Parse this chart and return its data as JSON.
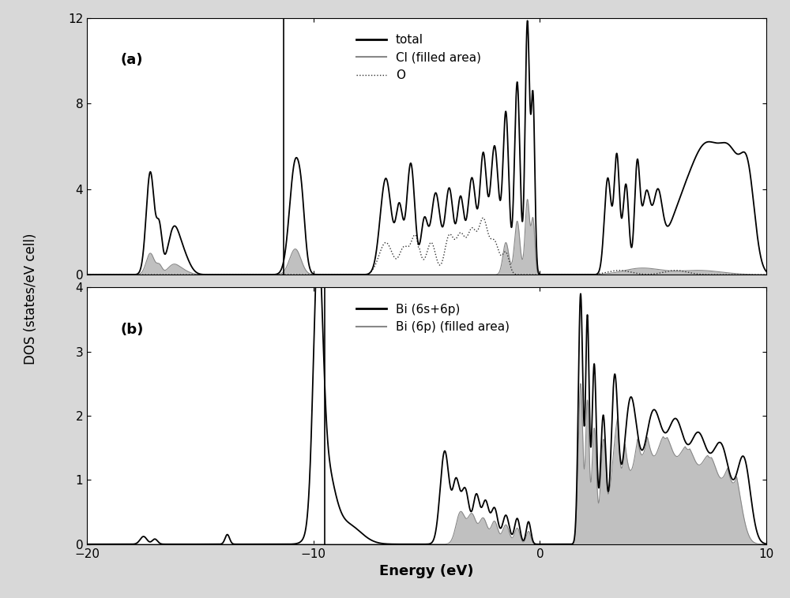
{
  "xlim": [
    -20,
    10
  ],
  "ylim_a": [
    0,
    12
  ],
  "ylim_b": [
    0,
    4
  ],
  "yticks_a": [
    0,
    4,
    8,
    12
  ],
  "yticks_b": [
    0,
    1,
    2,
    3,
    4
  ],
  "xticks": [
    -20,
    -10,
    0,
    10
  ],
  "xlabel": "Energy (eV)",
  "ylabel": "DOS (states/eV cell)",
  "title_a": "(a)",
  "title_b": "(b)",
  "bg_color": "#f0f0f0",
  "fill_color": "#c8c8c8",
  "total_color": "#000000",
  "cl_color": "#999999",
  "o_color": "#444444",
  "bi_total_color": "#000000",
  "bi_6p_color": "#999999",
  "vline_color": "#000000",
  "fermi_x": 0.0,
  "gap_x_a": -11.3,
  "gap_x_b": -9.5
}
